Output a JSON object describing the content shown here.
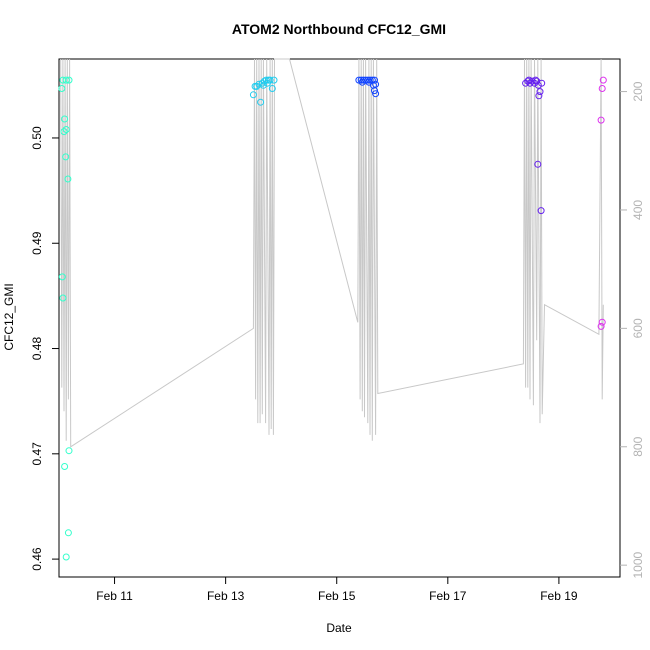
{
  "chart_data": {
    "type": "scatter",
    "title": "ATOM2 Northbound CFC12_GMI",
    "xlabel": "Date",
    "ylabel": "CFC12_GMI",
    "xlim": [
      10.0,
      20.1
    ],
    "ylim": [
      0.4583,
      0.5075
    ],
    "x_ticks": [
      {
        "value": 11,
        "label": "Feb 11"
      },
      {
        "value": 13,
        "label": "Feb 13"
      },
      {
        "value": 15,
        "label": "Feb 15"
      },
      {
        "value": 17,
        "label": "Feb 17"
      },
      {
        "value": 19,
        "label": "Feb 19"
      }
    ],
    "y_ticks": [
      {
        "value": 0.46,
        "label": "0.46"
      },
      {
        "value": 0.47,
        "label": "0.47"
      },
      {
        "value": 0.48,
        "label": "0.48"
      },
      {
        "value": 0.49,
        "label": "0.49"
      },
      {
        "value": 0.5,
        "label": "0.50"
      }
    ],
    "y2_ticks": [
      {
        "value": 200,
        "label": "200"
      },
      {
        "value": 400,
        "label": "400"
      },
      {
        "value": 600,
        "label": "600"
      },
      {
        "value": 800,
        "label": "800"
      },
      {
        "value": 1000,
        "label": "1000"
      }
    ],
    "y2lim": [
      145,
      1020
    ],
    "y2_inverted": true,
    "grid": false,
    "colors": {
      "pressure_line": "#c8c8c8",
      "axis": "#000000",
      "y2_axis": "#b3b3b3",
      "series": [
        "#33ffcc",
        "#22ccee",
        "#1144ff",
        "#6622ee",
        "#dd33ee"
      ]
    },
    "series": [
      {
        "points": [
          [
            10.07,
            0.5055
          ],
          [
            10.13,
            0.5055
          ],
          [
            10.18,
            0.5055
          ],
          [
            10.05,
            0.5047
          ],
          [
            10.1,
            0.5018
          ],
          [
            10.13,
            0.5008
          ],
          [
            10.09,
            0.5006
          ],
          [
            10.12,
            0.4982
          ],
          [
            10.16,
            0.4961
          ],
          [
            10.06,
            0.4868
          ],
          [
            10.07,
            0.4848
          ],
          [
            10.18,
            0.4703
          ],
          [
            10.1,
            0.4688
          ],
          [
            10.17,
            0.4625
          ],
          [
            10.13,
            0.4602
          ]
        ]
      },
      {
        "points": [
          [
            13.5,
            0.5041
          ],
          [
            13.56,
            0.5049
          ],
          [
            13.6,
            0.5051
          ],
          [
            13.63,
            0.5034
          ],
          [
            13.66,
            0.5052
          ],
          [
            13.7,
            0.5054
          ],
          [
            13.73,
            0.5055
          ],
          [
            13.77,
            0.5055
          ],
          [
            13.8,
            0.5055
          ],
          [
            13.84,
            0.5047
          ],
          [
            13.87,
            0.5055
          ],
          [
            13.53,
            0.5049
          ],
          [
            13.68,
            0.505
          ],
          [
            13.75,
            0.5052
          ]
        ]
      },
      {
        "points": [
          [
            15.4,
            0.5055
          ],
          [
            15.44,
            0.5055
          ],
          [
            15.48,
            0.5055
          ],
          [
            15.52,
            0.5055
          ],
          [
            15.56,
            0.5055
          ],
          [
            15.6,
            0.5055
          ],
          [
            15.64,
            0.5055
          ],
          [
            15.68,
            0.5055
          ],
          [
            15.7,
            0.5051
          ],
          [
            15.66,
            0.505
          ],
          [
            15.68,
            0.5045
          ],
          [
            15.7,
            0.5042
          ],
          [
            15.46,
            0.5053
          ],
          [
            15.58,
            0.5053
          ]
        ]
      },
      {
        "points": [
          [
            18.4,
            0.5052
          ],
          [
            18.44,
            0.5054
          ],
          [
            18.48,
            0.5052
          ],
          [
            18.52,
            0.5054
          ],
          [
            18.56,
            0.5052
          ],
          [
            18.6,
            0.5054
          ],
          [
            18.63,
            0.505
          ],
          [
            18.66,
            0.5044
          ],
          [
            18.64,
            0.504
          ],
          [
            18.69,
            0.5052
          ],
          [
            18.62,
            0.4975
          ],
          [
            18.68,
            0.4931
          ],
          [
            18.46,
            0.5055
          ],
          [
            18.58,
            0.5055
          ]
        ]
      },
      {
        "points": [
          [
            19.8,
            0.5055
          ],
          [
            19.78,
            0.5047
          ],
          [
            19.76,
            0.5017
          ],
          [
            19.78,
            0.4825
          ],
          [
            19.76,
            0.4821
          ]
        ]
      }
    ],
    "pressure_track": [
      [
        10.03,
        145
      ],
      [
        10.05,
        700
      ],
      [
        10.07,
        145
      ],
      [
        10.09,
        740
      ],
      [
        10.11,
        145
      ],
      [
        10.13,
        790
      ],
      [
        10.15,
        145
      ],
      [
        10.17,
        720
      ],
      [
        10.19,
        145
      ],
      [
        10.21,
        800
      ],
      [
        13.5,
        600
      ],
      [
        13.52,
        145
      ],
      [
        13.54,
        720
      ],
      [
        13.56,
        145
      ],
      [
        13.58,
        760
      ],
      [
        13.6,
        145
      ],
      [
        13.62,
        760
      ],
      [
        13.64,
        145
      ],
      [
        13.66,
        745
      ],
      [
        13.68,
        145
      ],
      [
        13.72,
        760
      ],
      [
        13.74,
        145
      ],
      [
        13.78,
        780
      ],
      [
        13.8,
        145
      ],
      [
        13.82,
        770
      ],
      [
        13.84,
        145
      ],
      [
        13.86,
        780
      ],
      [
        13.88,
        145
      ],
      [
        14.15,
        145
      ],
      [
        15.38,
        590
      ],
      [
        15.4,
        145
      ],
      [
        15.42,
        720
      ],
      [
        15.44,
        145
      ],
      [
        15.46,
        740
      ],
      [
        15.48,
        145
      ],
      [
        15.5,
        750
      ],
      [
        15.52,
        145
      ],
      [
        15.56,
        760
      ],
      [
        15.58,
        145
      ],
      [
        15.6,
        780
      ],
      [
        15.62,
        145
      ],
      [
        15.64,
        790
      ],
      [
        15.66,
        145
      ],
      [
        15.7,
        780
      ],
      [
        15.72,
        145
      ],
      [
        15.74,
        710
      ],
      [
        18.36,
        660
      ],
      [
        18.38,
        145
      ],
      [
        18.4,
        700
      ],
      [
        18.42,
        145
      ],
      [
        18.44,
        700
      ],
      [
        18.46,
        145
      ],
      [
        18.48,
        720
      ],
      [
        18.5,
        145
      ],
      [
        18.54,
        730
      ],
      [
        18.56,
        145
      ],
      [
        18.6,
        620
      ],
      [
        18.62,
        145
      ],
      [
        18.66,
        760
      ],
      [
        18.68,
        145
      ],
      [
        18.7,
        745
      ],
      [
        18.74,
        560
      ],
      [
        19.72,
        610
      ],
      [
        19.76,
        145
      ],
      [
        19.78,
        720
      ],
      [
        19.8,
        560
      ]
    ]
  }
}
